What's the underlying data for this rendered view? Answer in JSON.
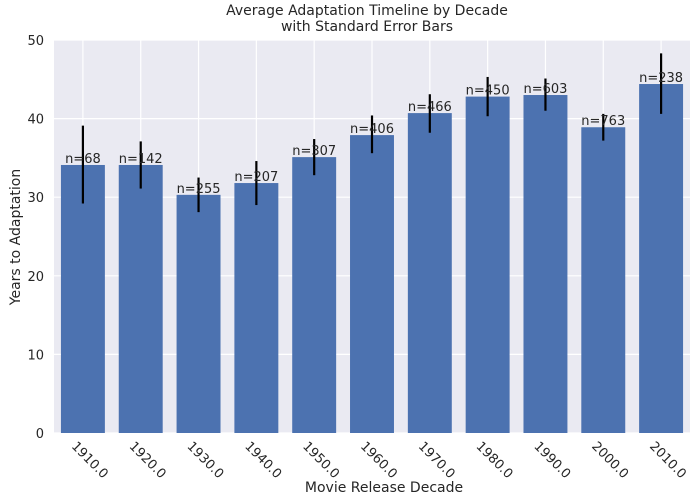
{
  "chart_data": {
    "type": "bar",
    "title_line1": "Average Adaptation Timeline by Decade",
    "title_line2": "with Standard Error Bars",
    "xlabel": "Movie Release Decade",
    "ylabel": "Years to Adaptation",
    "ylim": [
      0,
      50
    ],
    "yticks": [
      0,
      10,
      20,
      30,
      40,
      50
    ],
    "grid": true,
    "categories": [
      "1910.0",
      "1920.0",
      "1930.0",
      "1940.0",
      "1950.0",
      "1960.0",
      "1970.0",
      "1980.0",
      "1990.0",
      "2000.0",
      "2010.0"
    ],
    "values": [
      34.1,
      34.1,
      30.3,
      31.8,
      35.1,
      37.9,
      40.7,
      42.8,
      43.0,
      38.9,
      44.4
    ],
    "error_low": [
      29.2,
      31.1,
      28.1,
      29.0,
      32.8,
      35.6,
      38.2,
      40.3,
      41.0,
      37.2,
      40.6
    ],
    "error_high": [
      39.1,
      37.1,
      32.5,
      34.6,
      37.4,
      40.4,
      43.1,
      45.3,
      45.1,
      40.6,
      48.3
    ],
    "bar_labels": [
      "n=68",
      "n=142",
      "n=255",
      "n=207",
      "n=307",
      "n=406",
      "n=466",
      "n=450",
      "n=603",
      "n=763",
      "n=238"
    ],
    "colors": {
      "bar": "#4c72b0",
      "background": "#eaeaf2",
      "grid": "#ffffff",
      "error": "#000000",
      "text": "#262626"
    }
  }
}
